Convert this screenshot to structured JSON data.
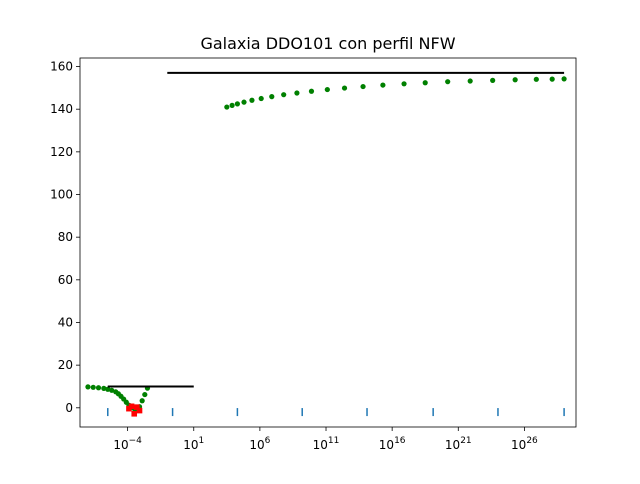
{
  "chart_data": {
    "type": "scatter",
    "title": "Galaxia DDO101 con perfil NFW",
    "xlabel": "",
    "ylabel": "",
    "x_scale": "log10",
    "xlim_log10": [
      -7.6,
      29.9
    ],
    "ylim": [
      -9,
      164
    ],
    "grid": false,
    "legend": "none",
    "x_tick_exponents": [
      -4,
      1,
      6,
      11,
      16,
      21,
      26
    ],
    "x_ticks": [
      {
        "base": "10",
        "exp": "−4"
      },
      {
        "base": "10",
        "exp": "1"
      },
      {
        "base": "10",
        "exp": "6"
      },
      {
        "base": "10",
        "exp": "11"
      },
      {
        "base": "10",
        "exp": "16"
      },
      {
        "base": "10",
        "exp": "21"
      },
      {
        "base": "10",
        "exp": "26"
      }
    ],
    "y_ticks": [
      "0",
      "20",
      "40",
      "60",
      "80",
      "100",
      "120",
      "140",
      "160"
    ],
    "colors": {
      "green": "#008000",
      "red": "#ff0000",
      "black": "#000000",
      "blue": "#1f77b4"
    },
    "series": [
      {
        "style": "green-dots",
        "points_log10x": [
          [
            -7.0,
            9.8
          ],
          [
            -6.6,
            9.6
          ],
          [
            -6.2,
            9.4
          ],
          [
            -5.8,
            9.1
          ],
          [
            -5.5,
            8.7
          ],
          [
            -5.2,
            8.2
          ],
          [
            -4.9,
            7.5
          ],
          [
            -4.7,
            6.6
          ],
          [
            -4.5,
            5.4
          ],
          [
            -4.3,
            4.1
          ],
          [
            -4.1,
            2.6
          ],
          [
            -3.9,
            1.2
          ],
          [
            -3.7,
            0.2
          ],
          [
            -3.5,
            -0.4
          ],
          [
            -3.3,
            -1.2
          ],
          [
            -3.1,
            0.5
          ],
          [
            -2.9,
            3.3
          ],
          [
            -2.7,
            6.2
          ],
          [
            -2.5,
            9.2
          ]
        ]
      },
      {
        "style": "red-squares",
        "points_log10x": [
          [
            -3.9,
            -0.4
          ],
          [
            -3.7,
            0.7
          ],
          [
            -3.5,
            -2.8
          ],
          [
            -3.3,
            0.3
          ],
          [
            -3.1,
            -1.3
          ]
        ]
      },
      {
        "style": "black-line",
        "points_log10x": [
          [
            -5.5,
            10.0
          ],
          [
            1.0,
            10.0
          ]
        ]
      },
      {
        "style": "green-dots",
        "points_log10x": [
          [
            3.5,
            141.0
          ],
          [
            3.9,
            141.8
          ],
          [
            4.3,
            142.5
          ],
          [
            4.8,
            143.3
          ],
          [
            5.4,
            144.2
          ],
          [
            6.1,
            145.0
          ],
          [
            6.9,
            145.9
          ],
          [
            7.8,
            146.8
          ],
          [
            8.8,
            147.6
          ],
          [
            9.9,
            148.4
          ],
          [
            11.1,
            149.2
          ],
          [
            12.4,
            149.9
          ],
          [
            13.8,
            150.6
          ],
          [
            15.3,
            151.3
          ],
          [
            16.9,
            151.9
          ],
          [
            18.5,
            152.4
          ],
          [
            20.2,
            152.9
          ],
          [
            21.9,
            153.2
          ],
          [
            23.6,
            153.5
          ],
          [
            25.3,
            153.8
          ],
          [
            26.9,
            154.0
          ],
          [
            28.1,
            154.1
          ],
          [
            29.0,
            154.2
          ]
        ]
      },
      {
        "style": "black-line",
        "points_log10x": [
          [
            -1.0,
            157.0
          ],
          [
            29.0,
            157.0
          ]
        ]
      },
      {
        "style": "blue-ticks",
        "points_log10x": [
          [
            -5.5,
            -2.0
          ],
          [
            -0.6,
            -2.0
          ],
          [
            4.3,
            -2.0
          ],
          [
            9.2,
            -2.0
          ],
          [
            14.1,
            -2.0
          ],
          [
            19.1,
            -2.0
          ],
          [
            24.0,
            -2.0
          ],
          [
            29.0,
            -2.0
          ]
        ]
      }
    ]
  }
}
